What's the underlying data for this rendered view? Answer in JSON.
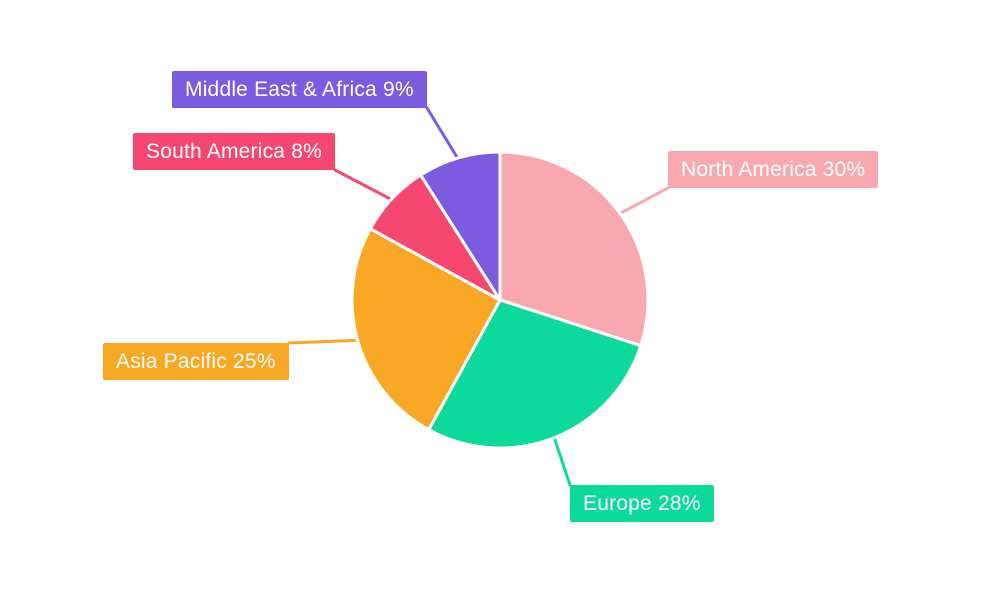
{
  "chart_data": {
    "type": "pie",
    "title": "",
    "legend": "none",
    "background": "#FFFFFF",
    "direction": "clockwise",
    "start_angle_deg": 0,
    "label_style": "external-colored-boxes-with-leader-lines",
    "slices": [
      {
        "name": "North America",
        "value": 30,
        "color": "#F9A8B0",
        "label_text": "North America 30%"
      },
      {
        "name": "Europe",
        "value": 28,
        "color": "#0CDA9B",
        "label_text": "Europe 28%"
      },
      {
        "name": "Asia Pacific",
        "value": 25,
        "color": "#F9A826",
        "label_text": "Asia Pacific 25%"
      },
      {
        "name": "South America",
        "value": 8,
        "color": "#F5476F",
        "label_text": "South America 8%"
      },
      {
        "name": "Middle East & Africa",
        "value": 9,
        "color": "#7B5BE0",
        "label_text": "Middle East & Africa 9%"
      }
    ]
  }
}
